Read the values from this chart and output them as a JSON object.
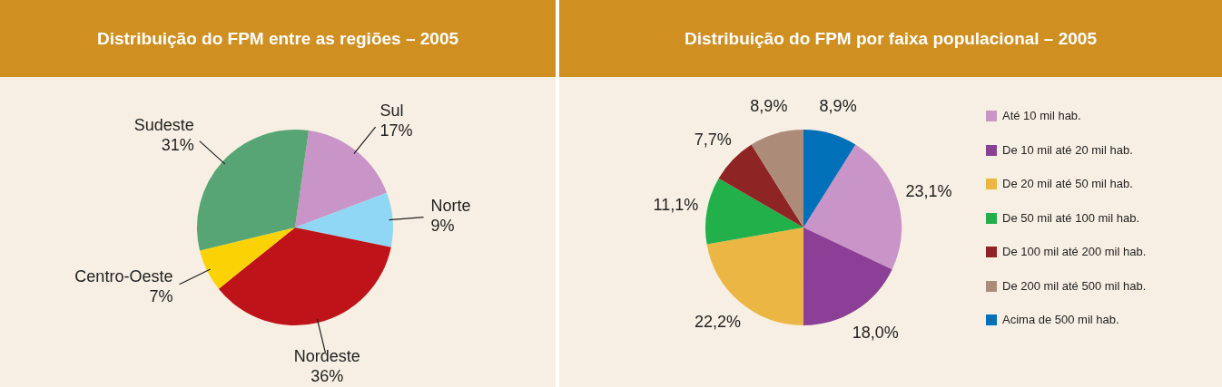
{
  "chart_data": [
    {
      "type": "pie",
      "title": "Distribuição do FPM entre as regiões – 2005",
      "categories": [
        "Sul",
        "Norte",
        "Nordeste",
        "Centro-Oeste",
        "Sudeste"
      ],
      "values": [
        17,
        9,
        36,
        7,
        31
      ],
      "colors": [
        "#c994c7",
        "#8fd7f5",
        "#be1419",
        "#fbd304",
        "#57a574"
      ],
      "value_labels": [
        "17%",
        "9%",
        "36%",
        "7%",
        "31%"
      ],
      "legend": false
    },
    {
      "type": "pie",
      "title": "Distribuição do FPM por faixa populacional – 2005",
      "categories": [
        "Até 10 mil hab.",
        "De 10 mil até 20 mil hab.",
        "De 20 mil até 50 mil hab.",
        "De 50 mil até 100 mil hab.",
        "De 100 mil até 200 mil hab.",
        "De 200 mil até 500 mil hab.",
        "Acima de 500 mil hab."
      ],
      "values": [
        23.1,
        18.0,
        22.2,
        11.1,
        7.7,
        8.9,
        8.9
      ],
      "colors": [
        "#c994c7",
        "#8b3f96",
        "#ebb643",
        "#22b04b",
        "#8f2424",
        "#ad8b79",
        "#0070b8"
      ],
      "value_labels": [
        "23,1%",
        "18,0%",
        "22,2%",
        "11,1%",
        "7,7%",
        "8,9%",
        "8,9%"
      ],
      "legend": "right"
    }
  ]
}
